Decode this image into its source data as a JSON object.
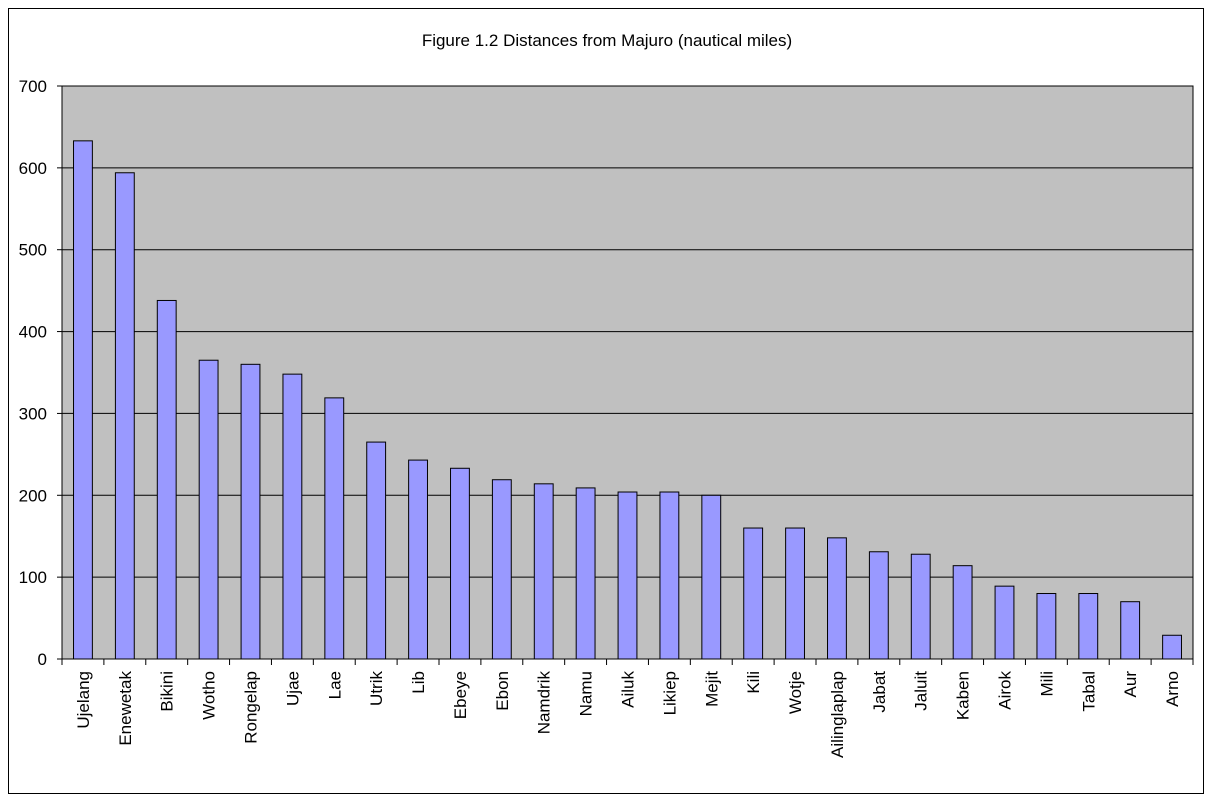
{
  "chart_data": {
    "type": "bar",
    "title": "Figure 1.2 Distances from Majuro (nautical miles)",
    "xlabel": "",
    "ylabel": "",
    "ylim": [
      0,
      700
    ],
    "yticks": [
      0,
      100,
      200,
      300,
      400,
      500,
      600,
      700
    ],
    "grid": true,
    "legend": false,
    "categories": [
      "Ujelang",
      "Enewetak",
      "Bikini",
      "Wotho",
      "Rongelap",
      "Ujae",
      "Lae",
      "Utrik",
      "Lib",
      "Ebeye",
      "Ebon",
      "Namdrik",
      "Namu",
      "Ailuk",
      "Likiep",
      "Mejit",
      "Kili",
      "Wotje",
      "Ailinglaplap",
      "Jabat",
      "Jaluit",
      "Kaben",
      "Airok",
      "Mili",
      "Tabal",
      "Aur",
      "Arno"
    ],
    "values": [
      633,
      594,
      438,
      365,
      360,
      348,
      319,
      265,
      243,
      233,
      219,
      214,
      209,
      204,
      204,
      200,
      160,
      160,
      148,
      131,
      128,
      114,
      89,
      80,
      80,
      70,
      29
    ],
    "colors": {
      "bar_fill": "#9999ff",
      "bar_stroke": "#000000",
      "plot_background": "#c0c0c0",
      "gridline": "#000000",
      "axis": "#000000",
      "frame": "#000000"
    }
  }
}
